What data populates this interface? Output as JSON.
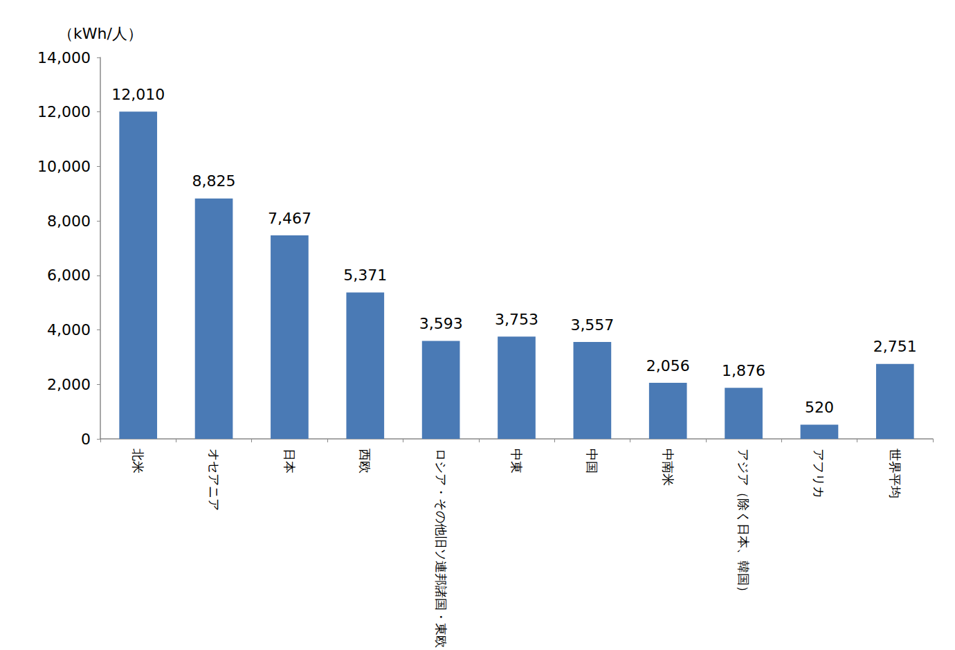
{
  "chart_data": {
    "type": "bar",
    "y_axis_label": "（kWh/人）",
    "categories": [
      "北米",
      "オセアニア",
      "日本",
      "西欧",
      "ロシア・その他旧ソ連邦諸国・東欧",
      "中東",
      "中国",
      "中南米",
      "アジア（除く日本、韓国）",
      "アフリカ",
      "世界平均"
    ],
    "values": [
      12010,
      8825,
      7467,
      5371,
      3593,
      3753,
      3557,
      2056,
      1876,
      520,
      2751
    ],
    "value_labels": [
      "12,010",
      "8,825",
      "7,467",
      "5,371",
      "3,593",
      "3,753",
      "3,557",
      "2,056",
      "1,876",
      "520",
      "2,751"
    ],
    "color": "#4a7ab5",
    "ylim": [
      0,
      14000
    ],
    "yticks": [
      0,
      {
        "value": 2000,
        "label": "2,000"
      },
      {
        "value": 4000,
        "label": "4,000"
      },
      {
        "value": 6000,
        "label": "6,000"
      },
      {
        "value": 8000,
        "label": "8,000"
      },
      {
        "value": 10000,
        "label": "10,000"
      },
      {
        "value": 12000,
        "label": "12,000"
      },
      {
        "value": 14000,
        "label": "14,000"
      }
    ],
    "grid": false,
    "data_labels": true
  }
}
